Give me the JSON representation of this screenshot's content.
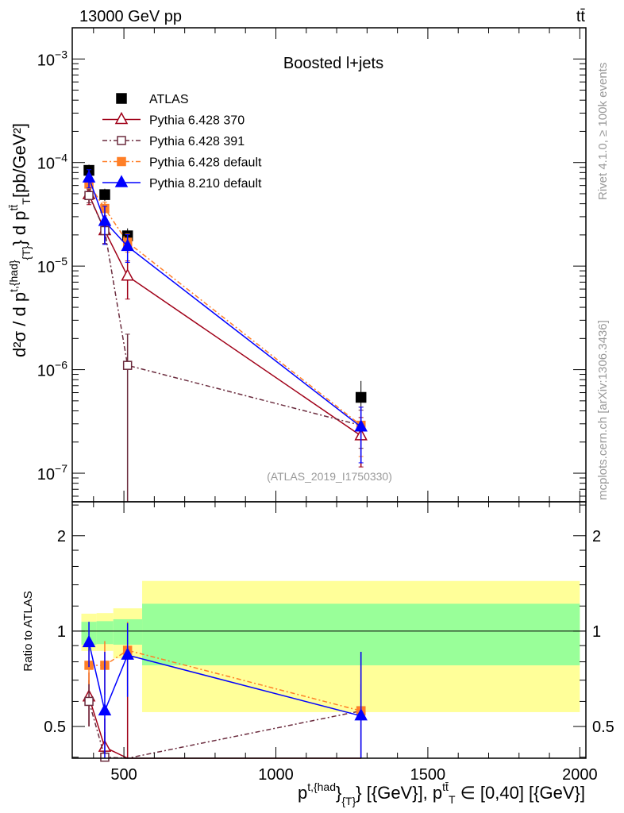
{
  "chart_data": {
    "type": "scatter",
    "header_left": "13000 GeV pp",
    "header_right": "tt̄",
    "title": "Boosted l+jets",
    "watermark": "(ATLAS_2019_I1750330)",
    "side_text_top": "Rivet 4.1.0, ≥ 100k events",
    "side_text_bottom": "mcplots.cern.ch [arXiv:1306.3436]",
    "xlabel_parts": [
      "p",
      "t,{had",
      "}",
      "{T}",
      "} [{GeV}], p",
      "tt̄",
      "T",
      " ∈ [0,40] [{GeV}]"
    ],
    "ylabel_parts": [
      "d²σ / d p",
      "t,{had}",
      "{T}",
      "} d p",
      "tt̄",
      "T",
      "[pb/GeV²]"
    ],
    "ratio_ylabel": "Ratio to ATLAS",
    "xlim": [
      330,
      2020
    ],
    "ylim": [
      5.3e-08,
      0.002
    ],
    "ratio_ylim": [
      0.397,
      2.56
    ],
    "x_ticks": [
      500,
      1000,
      1500,
      2000
    ],
    "y_ticks": [
      {
        "exp": "−3",
        "v": 0.001
      },
      {
        "exp": "−4",
        "v": 0.0001
      },
      {
        "exp": "−5",
        "v": 1e-05
      },
      {
        "exp": "−6",
        "v": 1e-06
      },
      {
        "exp": "−7",
        "v": 1e-07
      }
    ],
    "y_tick_base": "10",
    "ratio_ticks": [
      {
        "label": "0.5",
        "v": 0.5
      },
      {
        "label": "1",
        "v": 1
      },
      {
        "label": "2",
        "v": 2
      }
    ],
    "bins": [
      [
        360,
        410
      ],
      [
        410,
        465
      ],
      [
        465,
        560
      ],
      [
        560,
        2000
      ]
    ],
    "x": [
      385,
      437,
      512,
      1280
    ],
    "data": {
      "name": "ATLAS",
      "values": [
        8.4e-05,
        4.9e-05,
        1.96e-05,
        5.4e-07
      ],
      "band_inner": [
        [
          0.906,
          1.07
        ],
        [
          0.91,
          1.075
        ],
        [
          0.906,
          1.09
        ],
        [
          0.78,
          1.22
        ]
      ],
      "band_outer": [
        [
          0.866,
          1.135
        ],
        [
          0.866,
          1.14
        ],
        [
          0.82,
          1.18
        ],
        [
          0.555,
          1.44
        ]
      ]
    },
    "series": [
      {
        "name": "Pythia 6.428 370",
        "color": "#a00018",
        "marker": "open-triangle",
        "dash": "",
        "values": [
          4.9e-05,
          2.2e-05,
          8e-06,
          2.3e-07
        ],
        "rel_err": [
          0.2,
          0.25,
          0.4,
          0.5
        ],
        "ratio": [
          0.62,
          0.43,
          0.36,
          0.38
        ],
        "ratio_err": [
          0.12,
          0.1,
          0.5,
          0.3
        ]
      },
      {
        "name": "Pythia 6.428 391",
        "color": "#6b2c3e",
        "marker": "open-square",
        "dash": "6,3,2,3",
        "values": [
          4.8e-05,
          2.2e-05,
          1.1e-06,
          2.9e-07
        ],
        "rel_err": [
          0.15,
          0.25,
          1.0,
          0.4
        ],
        "ratio": [
          0.6,
          0.4,
          0.056,
          0.56
        ],
        "ratio_err": [
          0.1,
          0.08,
          0.06,
          0.3
        ]
      },
      {
        "name": "Pythia 6.428 default",
        "color": "#ff7f27",
        "marker": "filled-square",
        "dash": "6,3,2,3",
        "values": [
          6.2e-05,
          3.6e-05,
          1.7e-05,
          2.9e-07
        ],
        "rel_err": [
          0.1,
          0.15,
          0.2,
          0.5
        ],
        "ratio": [
          0.78,
          0.78,
          0.87,
          0.56
        ],
        "ratio_err": [
          0.1,
          0.15,
          0.2,
          0.3
        ]
      },
      {
        "name": "Pythia 8.210 default",
        "color": "#0000ff",
        "marker": "filled-triangle",
        "dash": "",
        "values": [
          7.1e-05,
          2.7e-05,
          1.55e-05,
          2.8e-07
        ],
        "rel_err": [
          0.2,
          0.4,
          0.3,
          0.55
        ],
        "ratio": [
          0.92,
          0.56,
          0.84,
          0.54
        ],
        "ratio_err": [
          0.15,
          0.3,
          0.22,
          0.32
        ]
      }
    ]
  }
}
